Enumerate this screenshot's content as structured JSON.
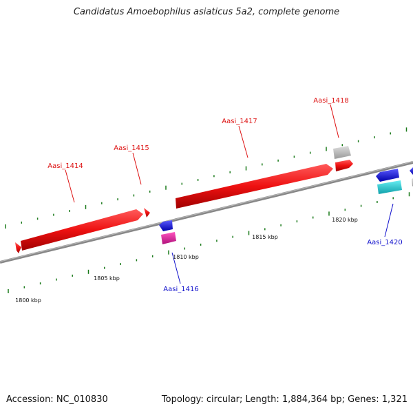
{
  "title": "Candidatus Amoebophilus asiaticus 5a2, complete genome",
  "footer": {
    "accession": "Accession: NC_010830",
    "summary": "Topology: circular; Length: 1,884,364 bp; Genes: 1,321"
  },
  "scale_labels": [
    "1800 kbp",
    "1805 kbp",
    "1810 kbp",
    "1815 kbp",
    "1820 kbp"
  ],
  "genes": [
    {
      "name": "Aasi_1414",
      "strand": "forward",
      "color": "#dd1111"
    },
    {
      "name": "Aasi_1415",
      "strand": "forward",
      "color": "#dd1111"
    },
    {
      "name": "Aasi_1416",
      "strand": "reverse",
      "color": "#1111cc"
    },
    {
      "name": "Aasi_1417",
      "strand": "forward",
      "color": "#dd1111"
    },
    {
      "name": "Aasi_1418",
      "strand": "forward",
      "color": "#dd1111"
    },
    {
      "name": "Aasi_1420",
      "strand": "reverse",
      "color": "#1111cc"
    }
  ],
  "colors": {
    "backbone": "#808080",
    "tick": "#1a7a1a",
    "forward_gene": "#ee1111",
    "reverse_gene": "#1a1aee",
    "pink_feature": "#e8199a",
    "cyan_feature": "#19c8d0",
    "grey_feature": "#bbbbbb"
  }
}
